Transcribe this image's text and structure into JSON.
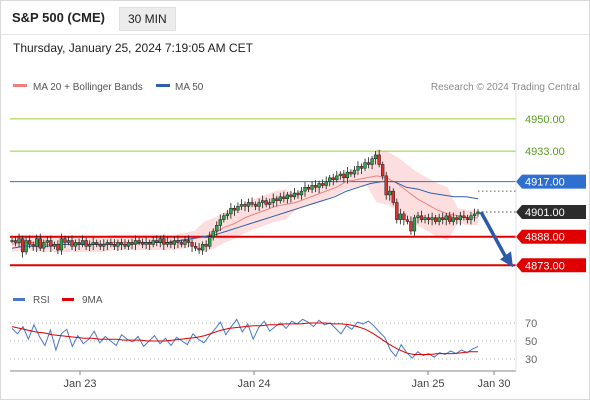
{
  "header": {
    "title": "S&P 500 (CME)",
    "timeframe": "30 MIN",
    "datetime": "Thursday, January 25, 2024 7:19:05 AM CET"
  },
  "copyright": "Research © 2024 Trading Central",
  "chart_data": [
    {
      "type": "candlestick",
      "series": [
        {
          "name": "MA 20 + Bollinger Bands",
          "color": "#f08080"
        },
        {
          "name": "MA 50",
          "color": "#2f5fa8"
        }
      ],
      "x_ticks": [
        "Jan 23",
        "Jan 24",
        "Jan 25",
        "Jan 30"
      ],
      "y_range": [
        4860,
        4962
      ],
      "levels": [
        {
          "value": 4950.0,
          "label": "4950.00",
          "color": "#9acd32",
          "style": "target"
        },
        {
          "value": 4933.0,
          "label": "4933.00",
          "color": "#9acd32",
          "style": "target"
        },
        {
          "value": 4917.0,
          "label": "4917.00",
          "color": "#2f6fd0",
          "style": "pivot"
        },
        {
          "value": 4901.0,
          "label": "4901.00",
          "color": "#2b2b2b",
          "style": "last"
        },
        {
          "value": 4888.0,
          "label": "4888.00",
          "color": "#e00000",
          "style": "support"
        },
        {
          "value": 4873.0,
          "label": "4873.00",
          "color": "#e00000",
          "style": "support"
        }
      ],
      "close": [
        4886,
        4885,
        4887,
        4880,
        4886,
        4884,
        4883,
        4887,
        4882,
        4885,
        4886,
        4883,
        4884,
        4881,
        4887,
        4885,
        4886,
        4883,
        4885,
        4884,
        4886,
        4883,
        4884,
        4885,
        4884,
        4883,
        4884,
        4885,
        4884,
        4883,
        4885,
        4884,
        4883,
        4885,
        4884,
        4886,
        4885,
        4884,
        4885,
        4884,
        4886,
        4885,
        4887,
        4884,
        4885,
        4884,
        4886,
        4885,
        4884,
        4886,
        4885,
        4883,
        4882,
        4881,
        4884,
        4883,
        4888,
        4891,
        4894,
        4897,
        4899,
        4900,
        4903,
        4902,
        4904,
        4905,
        4904,
        4906,
        4905,
        4904,
        4906,
        4907,
        4905,
        4906,
        4908,
        4907,
        4909,
        4908,
        4910,
        4909,
        4911,
        4910,
        4912,
        4914,
        4913,
        4915,
        4914,
        4916,
        4915,
        4917,
        4919,
        4918,
        4920,
        4921,
        4919,
        4922,
        4921,
        4923,
        4925,
        4924,
        4927,
        4926,
        4929,
        4931,
        4926,
        4920,
        4910,
        4912,
        4906,
        4897,
        4900,
        4897,
        4896,
        4891,
        4898,
        4899,
        4897,
        4898,
        4897,
        4898,
        4896,
        4898,
        4897,
        4899,
        4896,
        4898,
        4897,
        4899,
        4898,
        4897,
        4899,
        4900,
        4901
      ],
      "ma20_approx": [
        4884,
        4885,
        4885,
        4884,
        4884,
        4884,
        4884,
        4884,
        4884,
        4884,
        4885,
        4885,
        4885,
        4885,
        4885,
        4885,
        4885,
        4886,
        4887,
        4888,
        4890,
        4893,
        4895,
        4898,
        4900,
        4902,
        4904,
        4905,
        4906,
        4908,
        4910,
        4912,
        4914,
        4917,
        4918,
        4919,
        4920,
        4919,
        4916,
        4912,
        4908,
        4905,
        4902,
        4900,
        4899,
        4898,
        4898
      ],
      "ma50_approx": [
        4882,
        4883,
        4883,
        4883,
        4884,
        4884,
        4884,
        4884,
        4884,
        4884,
        4884,
        4885,
        4885,
        4885,
        4886,
        4887,
        4888,
        4889,
        4891,
        4893,
        4895,
        4897,
        4899,
        4901,
        4903,
        4905,
        4907,
        4909,
        4912,
        4914,
        4916,
        4917,
        4917,
        4914,
        4913,
        4911,
        4910,
        4909,
        4909,
        4908
      ]
    },
    {
      "type": "line",
      "series": [
        {
          "name": "RSI",
          "color": "#4a78c8"
        },
        {
          "name": "9MA",
          "color": "#e00000"
        }
      ],
      "y_ticks": [
        "70",
        "50",
        "30"
      ],
      "y_range": [
        20,
        80
      ],
      "rsi": [
        64,
        58,
        66,
        52,
        68,
        55,
        45,
        62,
        40,
        58,
        63,
        44,
        56,
        47,
        52,
        61,
        48,
        55,
        50,
        45,
        57,
        52,
        49,
        55,
        44,
        50,
        56,
        47,
        53,
        45,
        54,
        50,
        46,
        58,
        52,
        48,
        56,
        63,
        71,
        57,
        66,
        74,
        60,
        69,
        52,
        65,
        72,
        61,
        66,
        70,
        64,
        72,
        69,
        74,
        71,
        66,
        73,
        68,
        70,
        64,
        58,
        67,
        63,
        71,
        69,
        72,
        67,
        60,
        54,
        40,
        33,
        46,
        37,
        31,
        38,
        34,
        36,
        32,
        37,
        35,
        39,
        36,
        40,
        37,
        41,
        44
      ],
      "ma9": [
        66,
        64,
        62,
        60,
        59,
        57,
        56,
        55,
        54,
        53,
        53,
        52,
        52,
        52,
        51,
        51,
        51,
        50,
        50,
        50,
        51,
        52,
        53,
        54,
        56,
        59,
        62,
        64,
        65,
        66,
        67,
        67,
        68,
        68,
        69,
        69,
        69,
        70,
        70,
        70,
        69,
        69,
        68,
        66,
        63,
        58,
        52,
        46,
        41,
        37,
        35,
        35,
        35,
        36,
        36,
        36,
        37,
        38,
        38
      ]
    }
  ]
}
